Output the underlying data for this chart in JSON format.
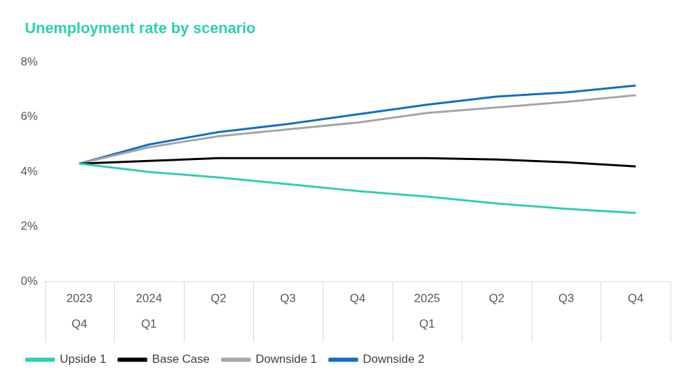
{
  "chart_data": {
    "type": "line",
    "title": "Unemployment rate by scenario",
    "categories": [
      "2023\nQ4",
      "2024\nQ1",
      "Q2",
      "Q3",
      "Q4",
      "2025\nQ1",
      "Q2",
      "Q3",
      "Q4"
    ],
    "series": [
      {
        "name": "Upside 1",
        "color": "#2ecfb0",
        "values": [
          4.3,
          4.0,
          3.8,
          3.55,
          3.3,
          3.1,
          2.85,
          2.65,
          2.5
        ]
      },
      {
        "name": "Base Case",
        "color": "#000000",
        "values": [
          4.3,
          4.4,
          4.5,
          4.5,
          4.5,
          4.5,
          4.45,
          4.35,
          4.2
        ]
      },
      {
        "name": "Downside 1",
        "color": "#a5a5a5",
        "values": [
          4.3,
          4.9,
          5.3,
          5.55,
          5.8,
          6.15,
          6.35,
          6.55,
          6.8
        ]
      },
      {
        "name": "Downside 2",
        "color": "#0f6fc6",
        "values": [
          4.3,
          5.0,
          5.45,
          5.75,
          6.1,
          6.45,
          6.75,
          6.9,
          7.15
        ]
      }
    ],
    "ylim": [
      0,
      8
    ],
    "yticks": [
      {
        "value": 0,
        "label": "0%"
      },
      {
        "value": 2,
        "label": "2%"
      },
      {
        "value": 4,
        "label": "4%"
      },
      {
        "value": 6,
        "label": "6%"
      },
      {
        "value": 8,
        "label": "8%"
      }
    ],
    "grid": false,
    "legend": "bottom",
    "marker": "none",
    "line_style": "solid"
  }
}
